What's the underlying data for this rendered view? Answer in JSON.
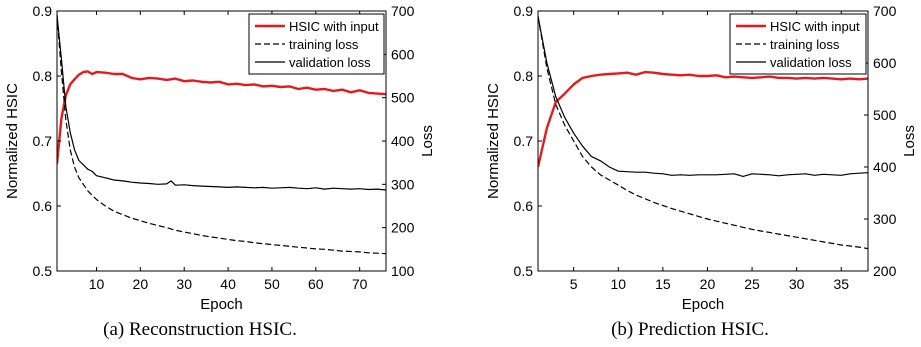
{
  "chart_data": [
    {
      "type": "line",
      "caption": "(a) Reconstruction HSIC.",
      "xlabel": "Epoch",
      "ylabel": "Normalized HSIC",
      "ylabel_right": "Loss",
      "xlim": [
        1,
        76
      ],
      "ylim": [
        0.5,
        0.9
      ],
      "ylim_right": [
        100,
        700
      ],
      "x_ticks": [
        10,
        20,
        30,
        40,
        50,
        60,
        70
      ],
      "y_ticks": [
        "0.5",
        "0.6",
        "0.7",
        "0.8",
        "0.9"
      ],
      "y_ticks_right": [
        "100",
        "200",
        "300",
        "400",
        "500",
        "600",
        "700"
      ],
      "legend_position": "top-right",
      "series": [
        {
          "name": "HSIC with input",
          "axis": "left",
          "color": "#e8191c",
          "style": "solid",
          "x": [
            1,
            2,
            3,
            4,
            5,
            6,
            7,
            8,
            9,
            10,
            12,
            14,
            16,
            18,
            20,
            22,
            24,
            26,
            28,
            30,
            32,
            34,
            36,
            38,
            40,
            42,
            44,
            46,
            48,
            50,
            52,
            54,
            56,
            58,
            60,
            62,
            64,
            66,
            68,
            70,
            72,
            74,
            76
          ],
          "values": [
            0.665,
            0.735,
            0.77,
            0.787,
            0.795,
            0.802,
            0.806,
            0.807,
            0.803,
            0.806,
            0.805,
            0.803,
            0.803,
            0.797,
            0.795,
            0.797,
            0.796,
            0.794,
            0.796,
            0.792,
            0.793,
            0.791,
            0.79,
            0.791,
            0.787,
            0.788,
            0.786,
            0.787,
            0.784,
            0.785,
            0.783,
            0.784,
            0.78,
            0.782,
            0.779,
            0.78,
            0.777,
            0.779,
            0.775,
            0.778,
            0.774,
            0.773,
            0.772
          ]
        },
        {
          "name": "training loss",
          "axis": "right",
          "color": "#000000",
          "style": "dashed",
          "x": [
            1,
            2,
            3,
            4,
            5,
            6,
            7,
            8,
            9,
            10,
            12,
            14,
            16,
            18,
            20,
            22,
            24,
            26,
            28,
            30,
            32,
            34,
            36,
            38,
            40,
            42,
            44,
            46,
            48,
            50,
            52,
            54,
            56,
            58,
            60,
            62,
            64,
            66,
            68,
            70,
            72,
            74,
            76
          ],
          "values": [
            690,
            560,
            450,
            380,
            340,
            315,
            300,
            285,
            275,
            265,
            250,
            238,
            230,
            222,
            216,
            210,
            205,
            200,
            194,
            190,
            186,
            182,
            179,
            176,
            173,
            170,
            168,
            165,
            163,
            161,
            159,
            157,
            155,
            153,
            151,
            150,
            148,
            146,
            145,
            144,
            142,
            141,
            140
          ]
        },
        {
          "name": "validation loss",
          "axis": "right",
          "color": "#000000",
          "style": "solid",
          "x": [
            1,
            2,
            3,
            4,
            5,
            6,
            7,
            8,
            9,
            10,
            12,
            14,
            16,
            18,
            20,
            22,
            24,
            26,
            27,
            28,
            30,
            32,
            34,
            36,
            38,
            40,
            42,
            44,
            46,
            48,
            50,
            52,
            54,
            56,
            58,
            60,
            62,
            64,
            66,
            68,
            70,
            72,
            74,
            76
          ],
          "values": [
            690,
            590,
            480,
            420,
            380,
            355,
            345,
            335,
            330,
            320,
            315,
            310,
            308,
            305,
            303,
            302,
            300,
            301,
            308,
            298,
            299,
            297,
            296,
            295,
            294,
            293,
            294,
            293,
            292,
            293,
            291,
            292,
            293,
            291,
            290,
            292,
            289,
            291,
            290,
            289,
            290,
            288,
            289,
            287
          ]
        }
      ]
    },
    {
      "type": "line",
      "caption": "(b) Prediction HSIC.",
      "xlabel": "Epoch",
      "ylabel": "Normalized HSIC",
      "ylabel_right": "Loss",
      "xlim": [
        1,
        38
      ],
      "ylim": [
        0.5,
        0.9
      ],
      "ylim_right": [
        200,
        700
      ],
      "x_ticks": [
        5,
        10,
        15,
        20,
        25,
        30,
        35
      ],
      "y_ticks": [
        "0.5",
        "0.6",
        "0.7",
        "0.8",
        "0.9"
      ],
      "y_ticks_right": [
        "200",
        "300",
        "400",
        "500",
        "600",
        "700"
      ],
      "legend_position": "top-right",
      "series": [
        {
          "name": "HSIC with input",
          "axis": "left",
          "color": "#e8191c",
          "style": "solid",
          "x": [
            1,
            2,
            3,
            4,
            5,
            6,
            7,
            8,
            9,
            10,
            11,
            12,
            13,
            14,
            15,
            16,
            17,
            18,
            19,
            20,
            21,
            22,
            23,
            24,
            25,
            26,
            27,
            28,
            29,
            30,
            31,
            32,
            33,
            34,
            35,
            36,
            37,
            38
          ],
          "values": [
            0.66,
            0.72,
            0.76,
            0.773,
            0.787,
            0.797,
            0.8,
            0.802,
            0.803,
            0.804,
            0.805,
            0.802,
            0.806,
            0.805,
            0.803,
            0.802,
            0.801,
            0.802,
            0.8,
            0.8,
            0.801,
            0.798,
            0.799,
            0.798,
            0.797,
            0.798,
            0.799,
            0.797,
            0.797,
            0.796,
            0.797,
            0.796,
            0.797,
            0.796,
            0.795,
            0.796,
            0.795,
            0.796
          ]
        },
        {
          "name": "training loss",
          "axis": "right",
          "color": "#000000",
          "style": "dashed",
          "x": [
            1,
            2,
            3,
            4,
            5,
            6,
            7,
            8,
            9,
            10,
            11,
            12,
            13,
            14,
            15,
            16,
            17,
            18,
            19,
            20,
            21,
            22,
            23,
            24,
            25,
            26,
            27,
            28,
            29,
            30,
            31,
            32,
            33,
            34,
            35,
            36,
            37,
            38
          ],
          "values": [
            690,
            590,
            520,
            480,
            450,
            420,
            400,
            385,
            375,
            365,
            355,
            346,
            339,
            332,
            326,
            320,
            315,
            310,
            305,
            300,
            296,
            292,
            288,
            284,
            280,
            277,
            274,
            271,
            268,
            265,
            262,
            259,
            256,
            253,
            250,
            248,
            246,
            243
          ]
        },
        {
          "name": "validation loss",
          "axis": "right",
          "color": "#000000",
          "style": "solid",
          "x": [
            1,
            2,
            3,
            4,
            5,
            6,
            7,
            8,
            9,
            10,
            11,
            12,
            13,
            14,
            15,
            16,
            17,
            18,
            19,
            20,
            21,
            22,
            23,
            24,
            25,
            26,
            27,
            28,
            29,
            30,
            31,
            32,
            33,
            34,
            35,
            36,
            37,
            38
          ],
          "values": [
            690,
            600,
            535,
            495,
            465,
            440,
            420,
            412,
            400,
            392,
            391,
            390,
            390,
            388,
            387,
            384,
            385,
            384,
            385,
            385,
            385,
            386,
            387,
            382,
            387,
            386,
            385,
            383,
            385,
            386,
            387,
            384,
            386,
            385,
            384,
            387,
            388,
            389
          ]
        }
      ]
    }
  ]
}
